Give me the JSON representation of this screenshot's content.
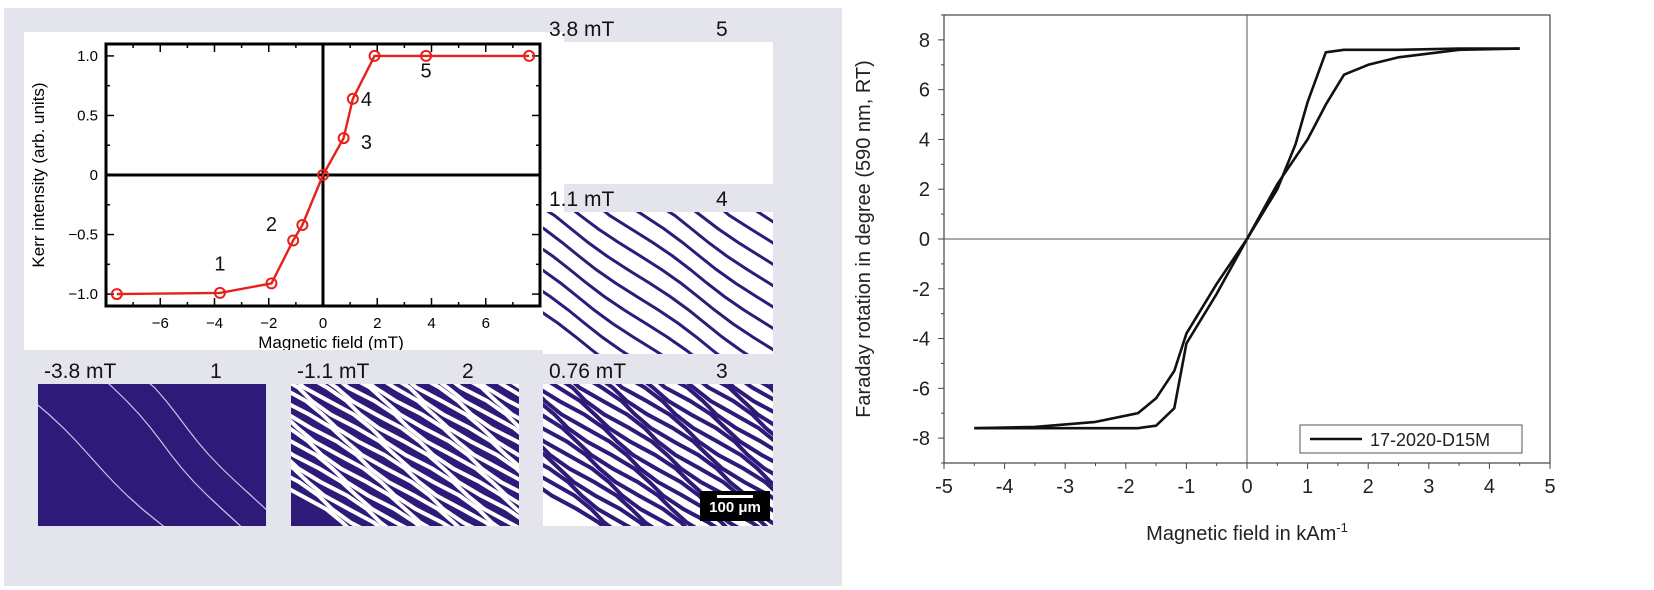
{
  "left_panel": {
    "images": [
      {
        "field": "3.8 mT",
        "index": "5",
        "pattern": "saturated"
      },
      {
        "field": "1.1 mT",
        "index": "4",
        "pattern": "stripes-sparse"
      },
      {
        "field": "0.76 mT",
        "index": "3",
        "pattern": "stripes-labyrinth-white"
      },
      {
        "field": "-3.8 mT",
        "index": "1",
        "pattern": "dark-sparse-walls"
      },
      {
        "field": "-1.1 mT",
        "index": "2",
        "pattern": "dark-labyrinth"
      }
    ],
    "scale_bar": "100 μm",
    "colors": {
      "domain": "#2e1a78",
      "curve": "#e8201c",
      "background": "#e4e4ec"
    }
  },
  "chart_data": [
    {
      "type": "line",
      "xlabel": "Magnetic field (mT)",
      "ylabel": "Kerr intensity (arb. units)",
      "xlim": [
        -8,
        8
      ],
      "ylim": [
        -1.1,
        1.1
      ],
      "xticks": [
        -6,
        -4,
        -2,
        0,
        2,
        4,
        6
      ],
      "xtick_labels": [
        "−6",
        "−4",
        "−2",
        "0",
        "2",
        "4",
        "6"
      ],
      "yticks": [
        -1.0,
        -0.5,
        0,
        0.5,
        1.0
      ],
      "ytick_labels": [
        "−1.0",
        "−0.5",
        "0",
        "0.5",
        "1.0"
      ],
      "series": [
        {
          "x": [
            -7.6,
            -3.8,
            -1.9,
            -1.1,
            -0.76,
            0,
            0.76,
            1.1,
            1.9,
            3.8,
            7.6
          ],
          "y": [
            -1.0,
            -0.99,
            -0.91,
            -0.55,
            -0.42,
            0,
            0.31,
            0.64,
            1.0,
            1.0,
            1.0
          ],
          "color": "#e8201c"
        }
      ],
      "annotations": [
        {
          "text": "1",
          "x": -3.8,
          "y": -0.8
        },
        {
          "text": "2",
          "x": -1.9,
          "y": -0.47
        },
        {
          "text": "3",
          "x": 1.6,
          "y": 0.22
        },
        {
          "text": "4",
          "x": 1.6,
          "y": 0.58
        },
        {
          "text": "5",
          "x": 3.8,
          "y": 0.82
        }
      ],
      "grid": false
    },
    {
      "type": "line",
      "xlabel": "Magnetic field in kAm",
      "xlabel_sup": "-1",
      "ylabel": "Faraday rotation in degree (590 nm, RT)",
      "xlim": [
        -5,
        5
      ],
      "ylim": [
        -9,
        9
      ],
      "xticks": [
        -5,
        -4,
        -3,
        -2,
        -1,
        0,
        1,
        2,
        3,
        4,
        5
      ],
      "xtick_labels": [
        "-5",
        "-4",
        "-3",
        "-2",
        "-1",
        "0",
        "1",
        "2",
        "3",
        "4",
        "5"
      ],
      "yticks": [
        -8,
        -6,
        -4,
        -2,
        0,
        2,
        4,
        6,
        8
      ],
      "ytick_labels": [
        "-8",
        "-6",
        "-4",
        "-2",
        "0",
        "2",
        "4",
        "6",
        "8"
      ],
      "legend": {
        "position": "bottom-right",
        "entries": [
          "17-2020-D15M"
        ]
      },
      "series": [
        {
          "name": "17-2020-D15M",
          "color": "#111111",
          "branch_a": {
            "x": [
              -4.5,
              -3.5,
              -2.5,
              -1.8,
              -1.5,
              -1.2,
              -1.0,
              -0.5,
              0,
              0.5,
              0.8,
              1.0,
              1.3,
              1.6,
              2.5,
              3.5,
              4.5
            ],
            "y": [
              -7.6,
              -7.6,
              -7.6,
              -7.6,
              -7.5,
              -6.8,
              -4.2,
              -2.2,
              0,
              2.0,
              3.8,
              5.5,
              7.5,
              7.6,
              7.6,
              7.65,
              7.65
            ]
          },
          "branch_b": {
            "x": [
              -4.5,
              -3.5,
              -2.5,
              -1.8,
              -1.5,
              -1.2,
              -1.0,
              -0.5,
              0,
              0.5,
              1.0,
              1.3,
              1.6,
              2.0,
              2.5,
              3.5,
              4.5
            ],
            "y": [
              -7.6,
              -7.55,
              -7.35,
              -7.0,
              -6.4,
              -5.3,
              -3.8,
              -1.8,
              0,
              2.2,
              4.0,
              5.4,
              6.6,
              7.0,
              7.3,
              7.6,
              7.65
            ]
          }
        }
      ],
      "grid": false
    }
  ]
}
